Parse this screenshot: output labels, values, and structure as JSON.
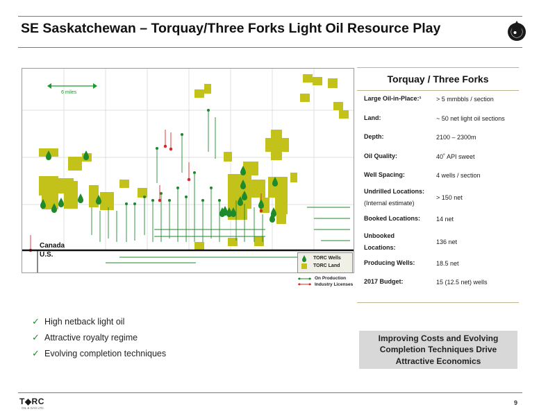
{
  "slide": {
    "title": "SE Saskatchewan – Torquay/Three Forks Light Oil Resource Play",
    "page_number": "9"
  },
  "brand": {
    "logo_text": "T◆RC",
    "logo_subtext": "OIL & GAS LTD.",
    "logo_icon": "oil-drop-icon",
    "dark_color": "#1a1a1a",
    "green_color": "#1e8a2b",
    "land_color": "#c3c21a",
    "license_color": "#d42a2a"
  },
  "map": {
    "scale_label": "6 miles",
    "canada_label": "Canada",
    "us_label": "U.S.",
    "legend": {
      "wells_label": "TORC Wells",
      "land_label": "TORC Land",
      "production_label": "On Production",
      "licenses_label": "Industry Licenses"
    }
  },
  "panel": {
    "heading": "Torquay / Three Forks",
    "rows": [
      {
        "label": "Large Oil-in-Place:¹",
        "value": "> 5 mmbbls / section"
      },
      {
        "label": "Land:",
        "value": "~ 50 net light oil sections"
      },
      {
        "label": "Depth:",
        "value": "2100 – 2300m"
      },
      {
        "label": "Oil Quality:",
        "value": "40˚ API  sweet"
      },
      {
        "label": "Well Spacing:",
        "value": "4 wells / section"
      },
      {
        "label": "Undrilled Locations:",
        "label2": "(Internal estimate)",
        "value": "> 150 net"
      },
      {
        "label": "Booked Locations:",
        "value": "14 net"
      },
      {
        "label": "Unbooked",
        "label2": "Locations:",
        "value": "136 net"
      },
      {
        "label": "Producing Wells:",
        "value": "18.5 net"
      },
      {
        "label": "2017 Budget:",
        "value": "15 (12.5 net) wells"
      }
    ]
  },
  "bullets": [
    "High netback light oil",
    "Attractive royalty regime",
    "Evolving completion techniques"
  ],
  "callout": {
    "line1": "Improving Costs and Evolving",
    "line2": "Completion Techniques Drive",
    "line3": "Attractive Economics"
  }
}
